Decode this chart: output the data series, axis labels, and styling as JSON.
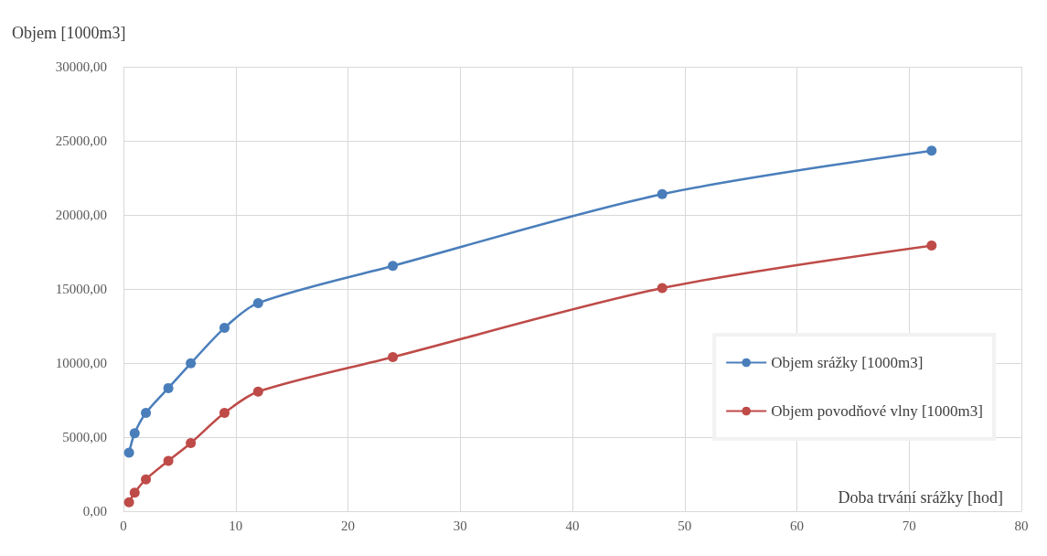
{
  "chart_data": {
    "type": "line",
    "xlabel": "Doba trvání srážky [hod]",
    "ylabel": "Objem [1000m3]",
    "x": [
      0.5,
      1,
      2,
      4,
      6,
      9,
      12,
      24,
      48,
      72
    ],
    "series": [
      {
        "name": "Objem srážky [1000m3]",
        "color": "#4a7ebb",
        "values": [
          3950,
          5260,
          6630,
          8310,
          9980,
          12370,
          14050,
          16560,
          21400,
          24330
        ]
      },
      {
        "name": "Objem povodňové vlny [1000m3]",
        "color": "#be4b48",
        "values": [
          600,
          1250,
          2150,
          3400,
          4600,
          6630,
          8070,
          10400,
          15060,
          17930
        ]
      }
    ],
    "xlim": [
      0,
      80
    ],
    "xticks": [
      0,
      10,
      20,
      30,
      40,
      50,
      60,
      70,
      80
    ],
    "ylim": [
      0,
      30000
    ],
    "yticks": [
      {
        "value": 0,
        "label": "0,00"
      },
      {
        "value": 5000,
        "label": "5000,00"
      },
      {
        "value": 10000,
        "label": "10000,00"
      },
      {
        "value": 15000,
        "label": "15000,00"
      },
      {
        "value": 20000,
        "label": "20000,00"
      },
      {
        "value": 25000,
        "label": "25000,00"
      },
      {
        "value": 30000,
        "label": "30000,00"
      }
    ],
    "grid": true,
    "legend": "right",
    "marker": "circle",
    "line_style": "solid"
  }
}
